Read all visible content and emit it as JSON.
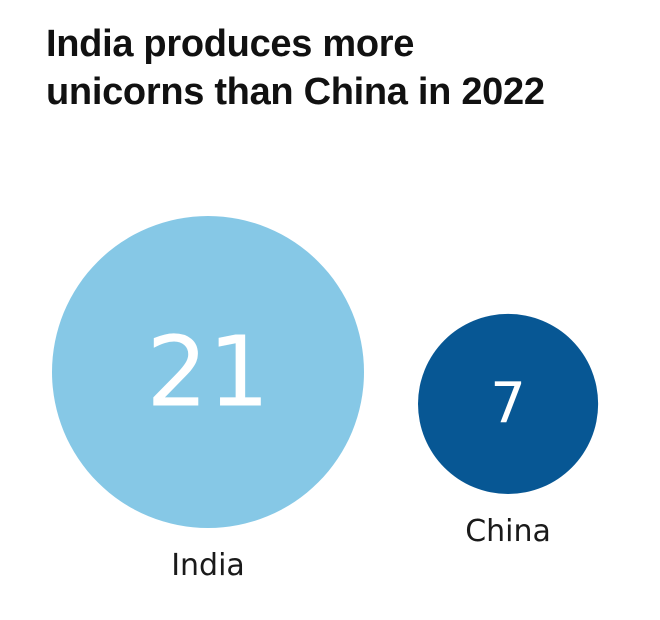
{
  "chart_data": {
    "type": "bubble",
    "title_lines": [
      "India produces more",
      "unicorns than China in 2022"
    ],
    "categories": [
      "India",
      "China"
    ],
    "values": [
      21,
      7
    ],
    "colors": [
      "#86c8e6",
      "#075794"
    ]
  }
}
